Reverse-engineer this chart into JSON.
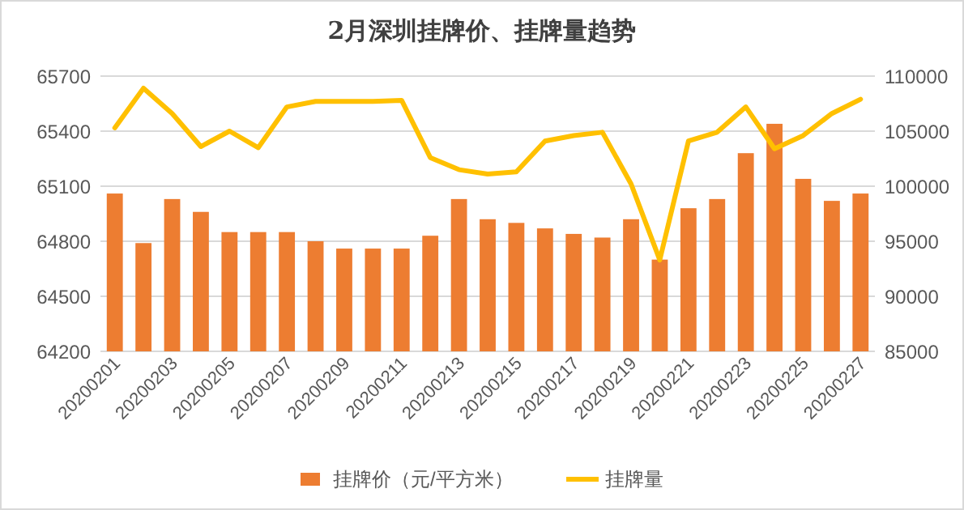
{
  "chart_data": {
    "type": "bar",
    "title": "2月深圳挂牌价、挂牌量趋势",
    "categories": [
      "20200201",
      null,
      "20200203",
      null,
      "20200205",
      null,
      "20200207",
      null,
      "20200209",
      null,
      "20200211",
      null,
      "20200213",
      null,
      "20200215",
      null,
      "20200217",
      null,
      "20200219",
      null,
      "20200221",
      null,
      "20200223",
      null,
      "20200225",
      null,
      "20200227"
    ],
    "series": [
      {
        "name": "挂牌价（元/平方米）",
        "color": "#ed7d31",
        "values": [
          65060,
          64790,
          65030,
          64960,
          64850,
          64850,
          64850,
          64800,
          64760,
          64760,
          64760,
          64830,
          65030,
          64920,
          64900,
          64870,
          64840,
          64820,
          64920,
          64700,
          64980,
          65030,
          65280,
          65440,
          65140,
          65020,
          65060
        ]
      },
      {
        "name": "挂牌量",
        "type": "line",
        "axis": "y2",
        "color": "#ffc000",
        "marker": "none",
        "values": [
          105300,
          108900,
          106600,
          103600,
          105000,
          103500,
          107200,
          107700,
          107700,
          107700,
          107800,
          102600,
          101500,
          101100,
          101300,
          104100,
          104600,
          104900,
          100200,
          93300,
          104100,
          104900,
          107200,
          103400,
          104600,
          106600,
          107900
        ]
      }
    ],
    "ylim": [
      64200,
      65700
    ],
    "yticks": [
      64200,
      64500,
      64800,
      65100,
      65400,
      65700
    ],
    "y2lim": [
      85000,
      110000
    ],
    "y2ticks": [
      85000,
      90000,
      95000,
      100000,
      105000,
      110000
    ],
    "grid": "y",
    "legend": "bottom"
  }
}
